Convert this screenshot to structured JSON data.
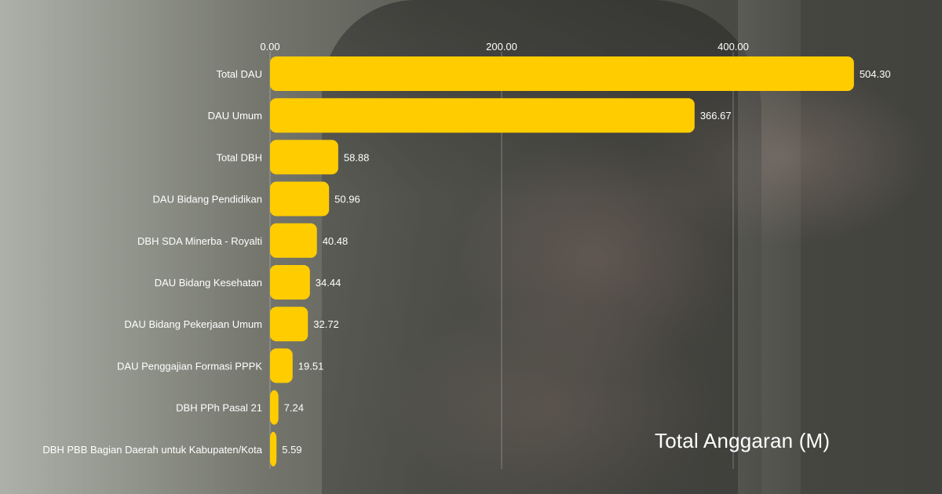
{
  "chart_data": {
    "type": "bar",
    "orientation": "horizontal",
    "title": "Total Anggaran (M)",
    "xlabel": "",
    "ylabel": "",
    "xlim": [
      0,
      500
    ],
    "x_ticks": [
      "0.00",
      "200.00",
      "400.00"
    ],
    "x_tick_values": [
      0,
      200,
      400
    ],
    "grid": true,
    "bar_color": "#ffcc00",
    "categories": [
      "Total DAU",
      "DAU Umum",
      "Total DBH",
      "DAU Bidang Pendidikan",
      "DBH SDA Minerba - Royalti",
      "DAU Bidang Kesehatan",
      "DAU Bidang Pekerjaan Umum",
      "DAU Penggajian Formasi PPPK",
      "DBH PPh Pasal 21",
      "DBH PBB Bagian Daerah untuk Kabupaten/Kota"
    ],
    "values": [
      504.3,
      366.67,
      58.88,
      50.96,
      40.48,
      34.44,
      32.72,
      19.51,
      7.24,
      5.59
    ],
    "value_labels": [
      "504.30",
      "366.67",
      "58.88",
      "50.96",
      "40.48",
      "34.44",
      "32.72",
      "19.51",
      "7.24",
      "5.59"
    ]
  }
}
